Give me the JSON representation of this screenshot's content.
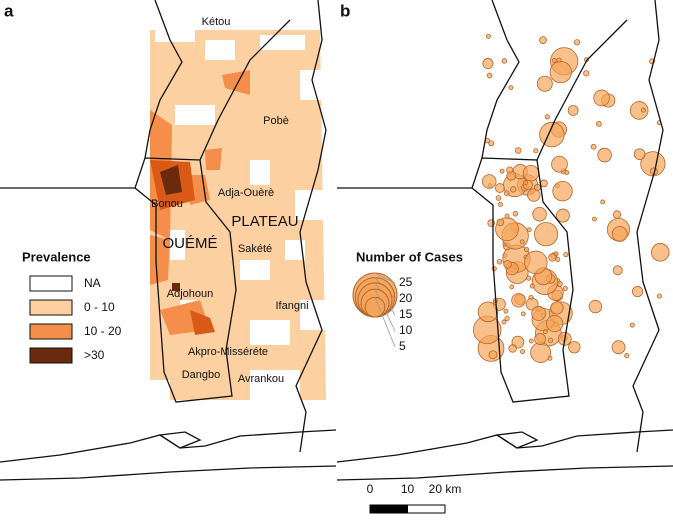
{
  "panels": [
    {
      "label": "a",
      "places": [
        "Kétou",
        "Pobè",
        "Adja-Ouèrè",
        "Bonou",
        "Sakété",
        "Adjohoun",
        "Ifangni",
        "Akpro-Misséréte",
        "Dangbo",
        "Avrankou"
      ],
      "regions": [
        "OUÉMÉ",
        "PLATEAU"
      ],
      "legend": {
        "title": "Prevalence",
        "classes": [
          {
            "label": "NA",
            "color": "#ffffff"
          },
          {
            "label": "0 - 10",
            "color": "#fdd0a2"
          },
          {
            "label": "10 - 20",
            "color": "#f48e4a"
          },
          {
            "label": ">30",
            "color": "#6b2a0d"
          }
        ]
      }
    },
    {
      "label": "b",
      "legend": {
        "title": "Number of Cases",
        "sizes": [
          25,
          20,
          15,
          10,
          5
        ],
        "color": "#f5a55a"
      }
    }
  ],
  "scale_bar": {
    "ticks": [
      0,
      10,
      {
        "value": 20,
        "label": "20 km"
      }
    ]
  }
}
